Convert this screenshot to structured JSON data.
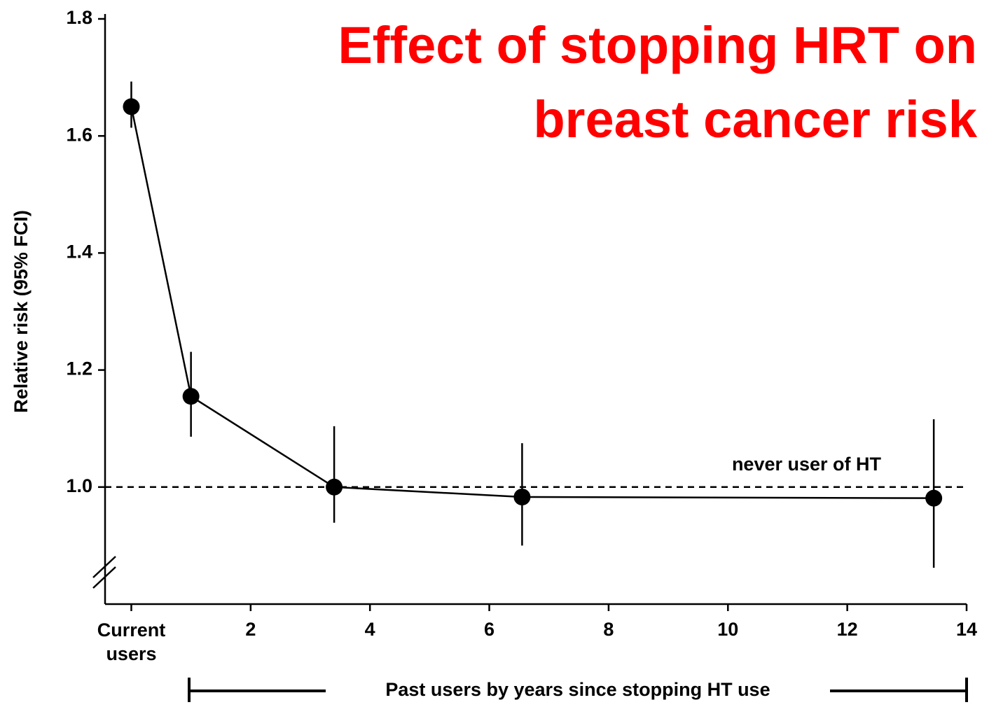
{
  "chart_data": {
    "type": "line",
    "title": "Effect of stopping HRT on breast cancer risk",
    "ylabel": "Relative risk (95% FCI)",
    "xlabel": "Past users by years since stopping HT use",
    "annotation": "never user of HT",
    "reference_line": 1.0,
    "x": [
      0,
      1.0,
      3.4,
      6.55,
      13.45
    ],
    "series": [
      {
        "color": "#000000",
        "values": [
          1.65,
          1.155,
          1.0,
          0.983,
          0.981
        ],
        "lower": [
          1.614,
          1.086,
          0.939,
          0.9,
          0.862
        ],
        "upper": [
          1.693,
          1.231,
          1.104,
          1.075,
          1.116
        ]
      }
    ],
    "xlim": [
      -0.44,
      14
    ],
    "ylim": [
      0.8,
      1.8
    ],
    "xticks": [
      {
        "value": 0,
        "label": "Current users"
      },
      2,
      4,
      6,
      8,
      10,
      12,
      14
    ],
    "yticks": [
      {
        "value": 1.0,
        "label": "1.0"
      },
      1.2,
      1.4,
      1.6,
      1.8
    ]
  }
}
